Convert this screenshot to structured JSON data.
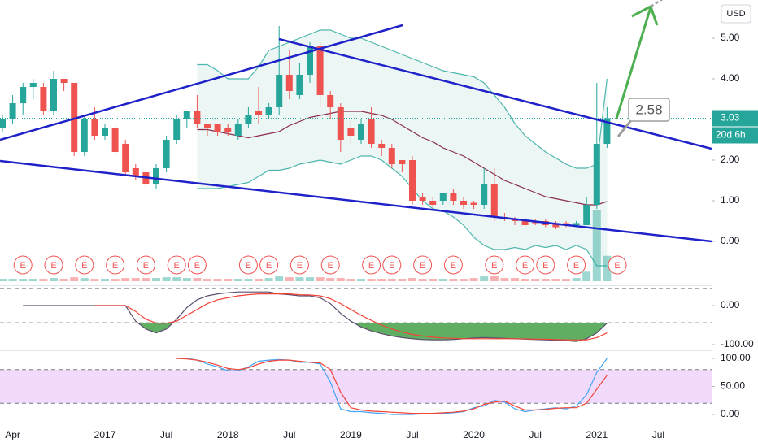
{
  "chart_data": {
    "type": "candlestick",
    "currency": "USD",
    "countdown": "20d 6h",
    "annotation": "2.58",
    "categories": [
      null,
      "Apr",
      null,
      null,
      null,
      null,
      null,
      null,
      null,
      null,
      "2017",
      null,
      null,
      null,
      null,
      null,
      "Jul",
      null,
      null,
      null,
      null,
      null,
      "2018",
      null,
      null,
      null,
      null,
      null,
      "Jul",
      null,
      null,
      null,
      null,
      null,
      "2019",
      null,
      null,
      null,
      null,
      null,
      "Jul",
      null,
      null,
      null,
      null,
      null,
      "2020",
      null,
      null,
      null,
      null,
      null,
      "Jul",
      null,
      null,
      null,
      null,
      null,
      "2021",
      null,
      null,
      null,
      null,
      null,
      "Jul",
      null,
      null,
      null,
      null,
      null
    ],
    "open": [
      2.8,
      3.0,
      3.4,
      3.8,
      3.8,
      3.2,
      4.0,
      3.9,
      2.2,
      3.0,
      2.6,
      2.8,
      2.4,
      1.8,
      1.7,
      1.4,
      1.8,
      2.5,
      3.0,
      3.2,
      2.9,
      2.9,
      2.8,
      2.6,
      2.9,
      3.2,
      3.1,
      3.3,
      4.1,
      3.6,
      4.1,
      4.8,
      3.6,
      3.3,
      2.8,
      2.5,
      3.0,
      2.4,
      2.3,
      2.0,
      2.0,
      1.1,
      1.0,
      1.0,
      1.2,
      1.0,
      0.95,
      0.9,
      1.4,
      0.6,
      0.55,
      0.5,
      0.5,
      0.5,
      0.45,
      0.45,
      0.4,
      0.4,
      0.9,
      2.4,
      null,
      null,
      null,
      null,
      null,
      null,
      null,
      null,
      null,
      null
    ],
    "high": [
      3.1,
      3.6,
      3.9,
      4.0,
      3.9,
      4.2,
      4.0,
      3.9,
      3.1,
      3.3,
      2.9,
      2.9,
      2.5,
      1.9,
      1.8,
      1.9,
      2.6,
      3.1,
      3.2,
      3.6,
      2.9,
      2.9,
      2.9,
      3.0,
      3.3,
      3.8,
      3.4,
      5.3,
      4.7,
      4.4,
      4.9,
      4.9,
      3.7,
      3.4,
      3.0,
      3.0,
      3.3,
      2.5,
      2.4,
      2.0,
      2.1,
      1.2,
      1.1,
      1.2,
      1.3,
      1.1,
      1.0,
      1.8,
      1.8,
      0.7,
      0.6,
      0.55,
      0.55,
      0.55,
      0.5,
      0.5,
      0.5,
      1.1,
      3.9,
      3.3,
      null,
      null,
      null,
      null,
      null,
      null,
      null,
      null,
      null,
      null
    ],
    "low": [
      2.7,
      2.9,
      3.1,
      3.5,
      3.1,
      3.1,
      3.7,
      2.1,
      2.1,
      2.5,
      2.5,
      2.1,
      1.6,
      1.5,
      1.3,
      1.3,
      1.7,
      2.4,
      2.8,
      2.8,
      2.6,
      2.6,
      2.6,
      2.5,
      2.8,
      2.9,
      3.0,
      3.1,
      3.5,
      3.5,
      3.9,
      3.3,
      3.0,
      2.2,
      2.4,
      2.4,
      2.3,
      2.1,
      1.8,
      1.7,
      0.9,
      0.9,
      0.8,
      0.9,
      0.9,
      0.8,
      0.8,
      0.8,
      0.5,
      0.5,
      0.4,
      0.35,
      0.4,
      0.35,
      0.3,
      0.35,
      0.35,
      0.4,
      0.8,
      2.3,
      null,
      null,
      null,
      null,
      null,
      null,
      null,
      null,
      null,
      null
    ],
    "close": [
      3.0,
      3.4,
      3.8,
      3.9,
      3.2,
      4.0,
      3.9,
      2.2,
      3.0,
      2.6,
      2.8,
      2.2,
      1.7,
      1.6,
      1.4,
      1.8,
      2.5,
      3.0,
      3.2,
      2.9,
      2.8,
      2.7,
      2.7,
      2.9,
      3.1,
      3.1,
      3.3,
      4.1,
      3.7,
      4.1,
      4.8,
      3.6,
      3.3,
      2.5,
      2.6,
      2.9,
      2.4,
      2.3,
      1.9,
      1.9,
      1.0,
      1.0,
      0.9,
      1.2,
      1.0,
      0.9,
      0.9,
      1.4,
      0.6,
      0.55,
      0.5,
      0.4,
      0.45,
      0.4,
      0.35,
      0.4,
      0.45,
      0.9,
      2.4,
      3.03,
      null,
      null,
      null,
      null,
      null,
      null,
      null,
      null,
      null,
      null
    ],
    "up_color": "#26a69a",
    "down_color": "#ef5350",
    "volume": [
      3,
      3,
      3,
      3,
      3,
      4,
      3,
      5,
      4,
      3,
      3,
      3,
      4,
      4,
      4,
      4,
      5,
      5,
      4,
      4,
      3,
      3,
      3,
      3,
      3,
      3,
      4,
      6,
      5,
      5,
      5,
      5,
      4,
      4,
      3,
      3,
      3,
      3,
      3,
      3,
      4,
      3,
      3,
      3,
      3,
      3,
      4,
      6,
      7,
      4,
      4,
      3,
      3,
      3,
      3,
      3,
      4,
      12,
      90,
      32,
      null,
      null,
      null,
      null,
      null,
      null,
      null,
      null,
      null,
      null
    ],
    "bollinger": {
      "upper": [
        null,
        null,
        null,
        null,
        null,
        null,
        null,
        null,
        null,
        null,
        null,
        null,
        null,
        null,
        null,
        null,
        null,
        null,
        null,
        4.35,
        4.35,
        4.2,
        4.0,
        4.0,
        4.0,
        4.3,
        4.7,
        4.8,
        4.9,
        5.0,
        5.1,
        5.2,
        5.2,
        5.1,
        5.0,
        5.0,
        4.9,
        4.8,
        4.7,
        4.6,
        4.5,
        4.4,
        4.3,
        4.2,
        4.15,
        4.1,
        4.05,
        3.9,
        3.6,
        3.3,
        2.9,
        2.6,
        2.4,
        2.2,
        2.05,
        1.9,
        1.8,
        1.8,
        1.9,
        4.0,
        null,
        null,
        null,
        null,
        null,
        null,
        null,
        null,
        null,
        null
      ],
      "middle": [
        null,
        null,
        null,
        null,
        null,
        null,
        null,
        null,
        null,
        null,
        null,
        null,
        null,
        null,
        null,
        null,
        null,
        null,
        null,
        2.75,
        2.75,
        2.7,
        2.65,
        2.6,
        2.55,
        2.6,
        2.65,
        2.7,
        2.85,
        2.95,
        3.05,
        3.1,
        3.15,
        3.2,
        3.2,
        3.2,
        3.15,
        3.1,
        3.0,
        2.85,
        2.7,
        2.55,
        2.45,
        2.3,
        2.2,
        2.1,
        1.95,
        1.8,
        1.65,
        1.5,
        1.4,
        1.3,
        1.2,
        1.1,
        1.05,
        1.0,
        0.95,
        0.9,
        0.9,
        0.98,
        null,
        null,
        null,
        null,
        null,
        null,
        null,
        null,
        null,
        null
      ],
      "lower": [
        null,
        null,
        null,
        null,
        null,
        null,
        null,
        null,
        null,
        null,
        null,
        null,
        null,
        null,
        null,
        null,
        null,
        null,
        null,
        1.3,
        1.3,
        1.3,
        1.35,
        1.4,
        1.45,
        1.6,
        1.75,
        1.75,
        1.8,
        1.9,
        1.95,
        2.0,
        1.95,
        1.9,
        2.0,
        2.1,
        2.1,
        2.0,
        1.8,
        1.6,
        1.3,
        1.0,
        0.8,
        0.75,
        0.6,
        0.4,
        0.1,
        -0.1,
        -0.2,
        -0.2,
        -0.15,
        -0.2,
        -0.1,
        -0.15,
        -0.1,
        -0.2,
        -0.1,
        -0.2,
        -0.6,
        -0.6,
        null,
        null,
        null,
        null,
        null,
        null,
        null,
        null,
        null,
        null
      ],
      "band_color": "#4db6ac",
      "middle_color": "#8b2d4a",
      "fill": "#e6f4f2"
    },
    "earnings": [
      null,
      null,
      "E",
      null,
      null,
      "E",
      null,
      null,
      "E",
      null,
      null,
      "E",
      null,
      null,
      "E",
      null,
      null,
      "E",
      null,
      "E",
      null,
      null,
      null,
      null,
      "E",
      null,
      "E",
      null,
      null,
      "E",
      null,
      null,
      "E",
      null,
      null,
      null,
      "E",
      null,
      "E",
      null,
      null,
      "E",
      null,
      null,
      "E",
      null,
      null,
      null,
      "E",
      null,
      null,
      "E",
      null,
      "E",
      null,
      null,
      "E",
      null,
      null,
      null,
      "E",
      null,
      null,
      null,
      null,
      null,
      null,
      null,
      null,
      null
    ],
    "earnings_color": "#ef5350",
    "ylim": [
      -1.06,
      5.94
    ],
    "yticks": [
      {
        "value": 0,
        "label": "0.00"
      },
      {
        "value": 1,
        "label": "1.00"
      },
      {
        "value": 2,
        "label": "2.00"
      },
      {
        "value": 4,
        "label": "4.00"
      },
      {
        "value": 5,
        "label": "5.00"
      }
    ],
    "indicators": [
      {
        "type": "line",
        "ylim": [
          -112.5,
          50
        ],
        "yticks": [
          {
            "value": 0,
            "label": "0.00"
          },
          {
            "value": -100,
            "label": "-100.00"
          }
        ],
        "levels": [
          44,
          -44
        ],
        "fill_color": "#43a047",
        "series": [
          {
            "color": "#5b4e6e",
            "values": [
              null,
              null,
              0,
              0,
              0,
              0,
              0,
              0,
              0,
              0,
              0,
              0,
              0,
              -40,
              -60,
              -70,
              -60,
              -35,
              -5,
              15,
              25,
              30,
              33,
              35,
              35,
              35,
              35,
              30,
              28,
              25,
              25,
              20,
              5,
              -20,
              -40,
              -55,
              -65,
              -72,
              -78,
              -82,
              -85,
              -87,
              -88,
              -88,
              -87,
              -85,
              -83,
              -82,
              -83,
              -84,
              -85,
              -86,
              -87,
              -88,
              -89,
              -90,
              -92,
              -85,
              -70,
              -45,
              null,
              null,
              null,
              null,
              null,
              null,
              null,
              null,
              null,
              null
            ]
          },
          {
            "color": "#f44336",
            "values": [
              null,
              null,
              null,
              null,
              null,
              null,
              null,
              null,
              null,
              0,
              0,
              0,
              0,
              -15,
              -35,
              -45,
              -45,
              -40,
              -25,
              -10,
              5,
              15,
              20,
              25,
              28,
              30,
              30,
              30,
              30,
              28,
              27,
              25,
              18,
              5,
              -10,
              -25,
              -38,
              -50,
              -60,
              -68,
              -74,
              -78,
              -81,
              -83,
              -84,
              -85,
              -85,
              -85,
              -85,
              -85,
              -85,
              -85,
              -86,
              -86,
              -87,
              -88,
              -88,
              -88,
              -82,
              -70,
              null,
              null,
              null,
              null,
              null,
              null,
              null,
              null,
              null,
              null
            ]
          }
        ]
      },
      {
        "type": "line",
        "ylim": [
          -14.5,
          111.6
        ],
        "yticks": [
          {
            "value": 0,
            "label": "0.00"
          },
          {
            "value": 50,
            "label": "50.00"
          },
          {
            "value": 100,
            "label": "100.00"
          }
        ],
        "band": [
          20,
          80
        ],
        "band_color": "#f1dafb",
        "series": [
          {
            "color": "#42a5f5",
            "values": [
              null,
              null,
              null,
              null,
              null,
              null,
              null,
              null,
              null,
              null,
              null,
              null,
              null,
              null,
              null,
              null,
              null,
              100,
              100,
              97,
              90,
              85,
              78,
              78,
              85,
              95,
              97,
              98,
              97,
              93,
              93,
              90,
              58,
              10,
              5,
              5,
              3,
              2,
              0,
              0,
              0,
              1,
              1,
              2,
              3,
              5,
              12,
              15,
              25,
              22,
              10,
              5,
              8,
              10,
              12,
              10,
              15,
              35,
              75,
              100,
              null,
              null,
              null,
              null,
              null,
              null,
              null,
              null,
              null,
              null
            ]
          },
          {
            "color": "#f44336",
            "values": [
              null,
              null,
              null,
              null,
              null,
              null,
              null,
              null,
              null,
              null,
              null,
              null,
              null,
              null,
              null,
              null,
              null,
              100,
              99,
              97,
              93,
              88,
              82,
              80,
              83,
              90,
              95,
              97,
              97,
              95,
              93,
              92,
              80,
              40,
              12,
              8,
              6,
              5,
              4,
              3,
              2,
              2,
              2,
              3,
              4,
              6,
              10,
              18,
              22,
              24,
              15,
              8,
              8,
              9,
              11,
              12,
              12,
              20,
              45,
              70,
              null,
              null,
              null,
              null,
              null,
              null,
              null,
              null,
              null,
              null
            ]
          }
        ]
      }
    ]
  }
}
